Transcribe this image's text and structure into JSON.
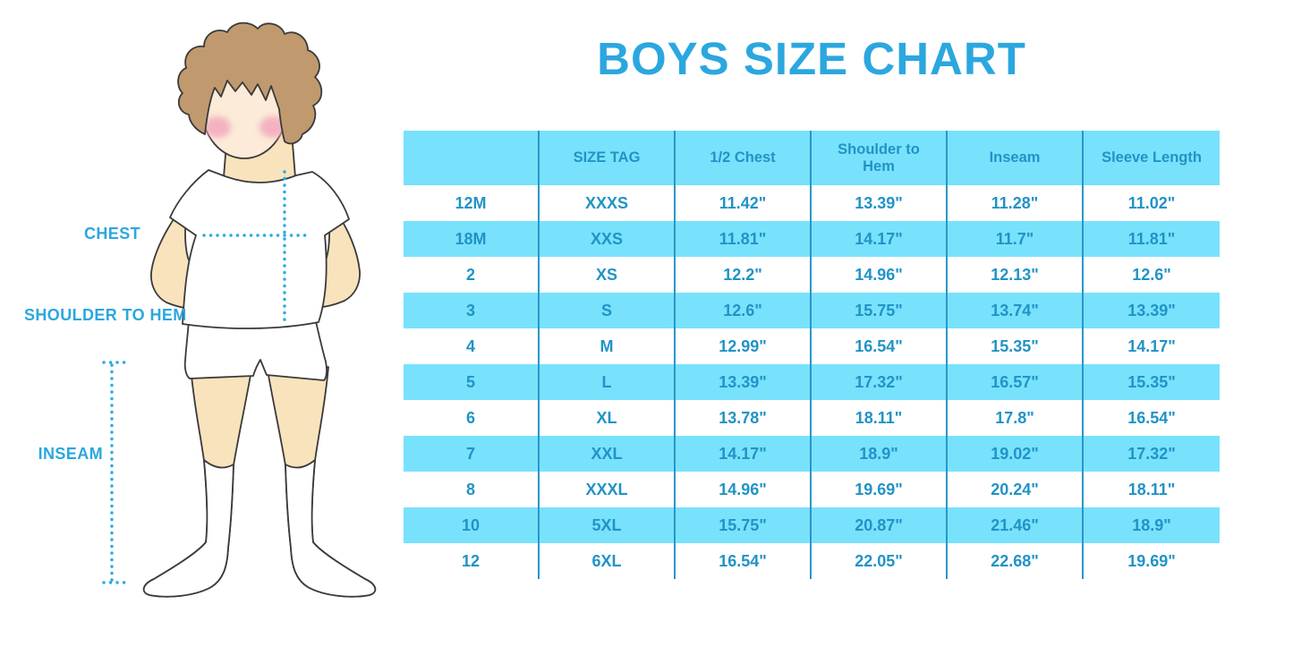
{
  "title": "BOYS SIZE CHART",
  "figure": {
    "description": "cartoon boy in white t-shirt, shorts and knee socks with measurement guides",
    "labels": {
      "chest": "CHEST",
      "shoulder_to_hem": "SHOULDER TO HEM",
      "inseam": "INSEAM"
    }
  },
  "colors": {
    "title_blue": "#2BA7DF",
    "table_text_blue": "#2193C6",
    "row_stripe": "#78E2FC",
    "column_divider": "#2A96C8",
    "dotted_guide": "#29ABE2",
    "hair": "#C09A6E",
    "skin": "#F9E3BC",
    "face": "#FBEBD8",
    "cheek": "#F3A9BE"
  },
  "chart_data": {
    "type": "table",
    "title": "BOYS SIZE CHART",
    "columns": [
      "",
      "SIZE TAG",
      "1/2 Chest",
      "Shoulder to Hem",
      "Inseam",
      "Sleeve Length"
    ],
    "rows": [
      [
        "12M",
        "XXXS",
        "11.42\"",
        "13.39\"",
        "11.28\"",
        "11.02\""
      ],
      [
        "18M",
        "XXS",
        "11.81\"",
        "14.17\"",
        "11.7\"",
        "11.81\""
      ],
      [
        "2",
        "XS",
        "12.2\"",
        "14.96\"",
        "12.13\"",
        "12.6\""
      ],
      [
        "3",
        "S",
        "12.6\"",
        "15.75\"",
        "13.74\"",
        "13.39\""
      ],
      [
        "4",
        "M",
        "12.99\"",
        "16.54\"",
        "15.35\"",
        "14.17\""
      ],
      [
        "5",
        "L",
        "13.39\"",
        "17.32\"",
        "16.57\"",
        "15.35\""
      ],
      [
        "6",
        "XL",
        "13.78\"",
        "18.11\"",
        "17.8\"",
        "16.54\""
      ],
      [
        "7",
        "XXL",
        "14.17\"",
        "18.9\"",
        "19.02\"",
        "17.32\""
      ],
      [
        "8",
        "XXXL",
        "14.96\"",
        "19.69\"",
        "20.24\"",
        "18.11\""
      ],
      [
        "10",
        "5XL",
        "15.75\"",
        "20.87\"",
        "21.46\"",
        "18.9\""
      ],
      [
        "12",
        "6XL",
        "16.54\"",
        "22.05\"",
        "22.68\"",
        "19.69\""
      ]
    ],
    "layout": {
      "striped_rows": "alternating white / light blue starting white",
      "grid": "vertical dividers only",
      "legend": "none"
    }
  }
}
